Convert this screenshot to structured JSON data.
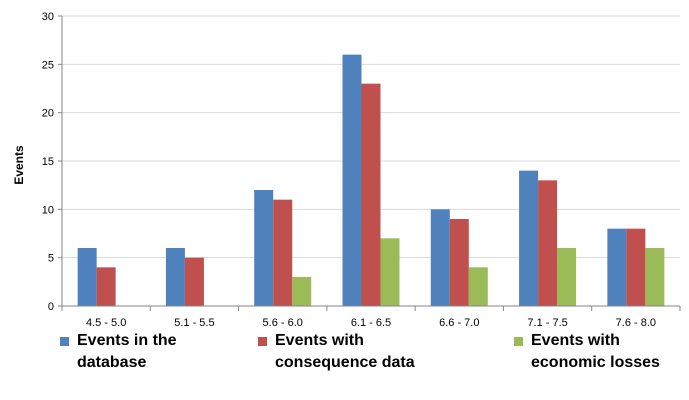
{
  "chart_data": {
    "type": "bar",
    "title": "",
    "xlabel": "",
    "ylabel": "Events",
    "ylim": [
      0,
      30
    ],
    "yticks": [
      0,
      5,
      10,
      15,
      20,
      25,
      30
    ],
    "grid": true,
    "legend_position": "bottom",
    "categories": [
      "4.5 - 5.0",
      "5.1 - 5.5",
      "5.6 - 6.0",
      "6.1 - 6.5",
      "6.6 - 7.0",
      "7.1 - 7.5",
      "7.6 - 8.0"
    ],
    "series": [
      {
        "name": "Events in the database",
        "color": "#4F81BD",
        "values": [
          6,
          6,
          12,
          26,
          10,
          14,
          8
        ]
      },
      {
        "name": "Events with consequence data",
        "color": "#C0504D",
        "values": [
          4,
          5,
          11,
          23,
          9,
          13,
          8
        ]
      },
      {
        "name": "Events with economic losses",
        "color": "#9BBB59",
        "values": [
          0,
          0,
          3,
          7,
          4,
          6,
          6
        ]
      }
    ]
  },
  "legend": {
    "items": [
      {
        "label": "Events in the database",
        "color": "#4F81BD"
      },
      {
        "label": "Events with consequence data",
        "color": "#C0504D"
      },
      {
        "label": "Events with economic losses",
        "color": "#9BBB59"
      }
    ]
  }
}
